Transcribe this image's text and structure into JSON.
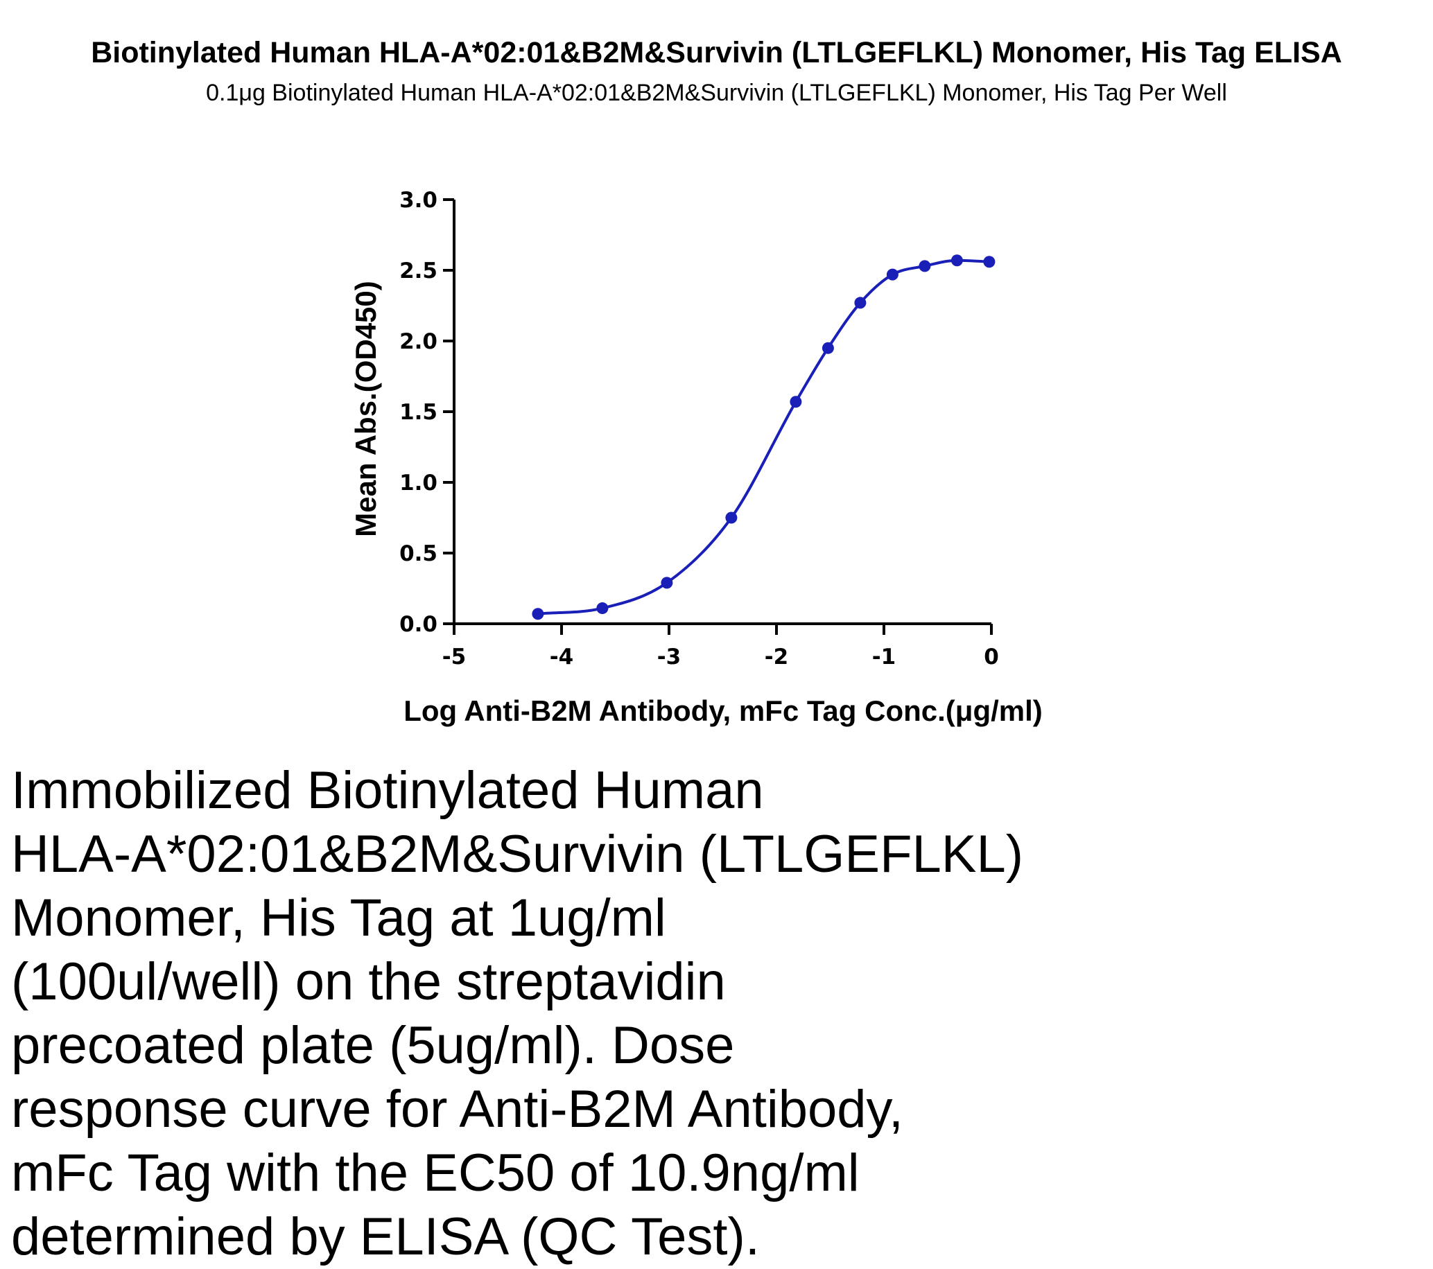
{
  "chart_data": {
    "type": "scatter",
    "title": "Biotinylated Human HLA-A*02:01&B2M&Survivin (LTLGEFLKL) Monomer, His Tag ELISA",
    "subtitle": "0.1μg Biotinylated Human HLA-A*02:01&B2M&Survivin (LTLGEFLKL) Monomer, His Tag Per Well",
    "xlabel": "Log Anti-B2M Antibody, mFc Tag Conc.(μg/ml)",
    "ylabel": "Mean Abs.(OD450)",
    "xlim": [
      -5,
      0
    ],
    "ylim": [
      0,
      3.0
    ],
    "x_ticks": [
      "-5",
      "-4",
      "-3",
      "-2",
      "-1",
      "0"
    ],
    "y_ticks": [
      "0.0",
      "0.5",
      "1.0",
      "1.5",
      "2.0",
      "2.5",
      "3.0"
    ],
    "series": [
      {
        "x": [
          -4.22,
          -3.62,
          -3.02,
          -2.42,
          -1.82,
          -1.52,
          -1.22,
          -0.92,
          -0.62,
          -0.32,
          -0.02
        ],
        "y": [
          0.07,
          0.11,
          0.29,
          0.75,
          1.57,
          1.95,
          2.27,
          2.47,
          2.53,
          2.57,
          2.56
        ],
        "fit": "4PL curve",
        "color": "#1a1fb8"
      }
    ],
    "grid": false,
    "legend": "none"
  },
  "caption": "Immobilized Biotinylated Human\nHLA-A*02:01&B2M&Survivin (LTLGEFLKL)\nMonomer, His Tag at 1ug/ml\n(100ul/well) on the streptavidin\nprecoated plate (5ug/ml). Dose\nresponse curve for Anti-B2M Antibody,\nmFc Tag with the EC50 of 10.9ng/ml\ndetermined by ELISA (QC Test)."
}
